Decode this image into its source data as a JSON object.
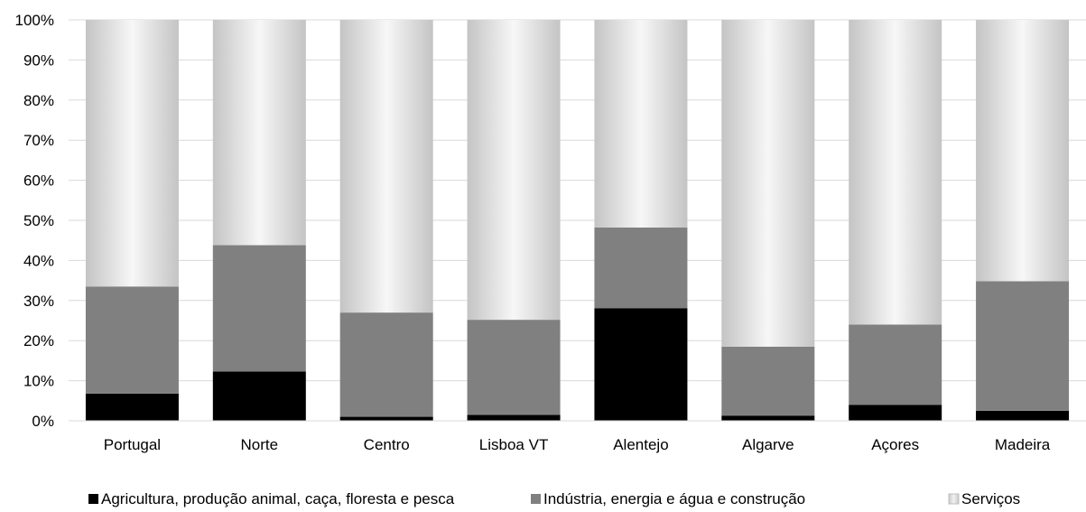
{
  "chart_data": {
    "type": "bar",
    "stacked": true,
    "normalized": true,
    "categories": [
      "Portugal",
      "Norte",
      "Centro",
      "Lisboa VT",
      "Alentejo",
      "Algarve",
      "Açores",
      "Madeira"
    ],
    "series": [
      {
        "name": "Agricultura, produção animal, caça, floresta e pesca",
        "color": "#000000",
        "values": [
          6.8,
          12.3,
          1.0,
          1.5,
          28.1,
          1.3,
          4.0,
          2.5
        ]
      },
      {
        "name": "Indústria, energia e água e construção",
        "color": "#808080",
        "values": [
          26.7,
          31.5,
          26.0,
          23.7,
          20.1,
          17.2,
          20.0,
          32.3
        ]
      },
      {
        "name": "Serviços",
        "color": "#c8c8c8",
        "values": [
          66.5,
          56.2,
          73.0,
          74.8,
          51.8,
          81.5,
          76.0,
          65.2
        ]
      }
    ],
    "y_ticks": [
      "0%",
      "10%",
      "20%",
      "30%",
      "40%",
      "50%",
      "60%",
      "70%",
      "80%",
      "90%",
      "100%"
    ],
    "ylim": [
      0,
      100
    ],
    "title": "",
    "xlabel": "",
    "ylabel": "",
    "grid": true,
    "legend_position": "bottom"
  }
}
